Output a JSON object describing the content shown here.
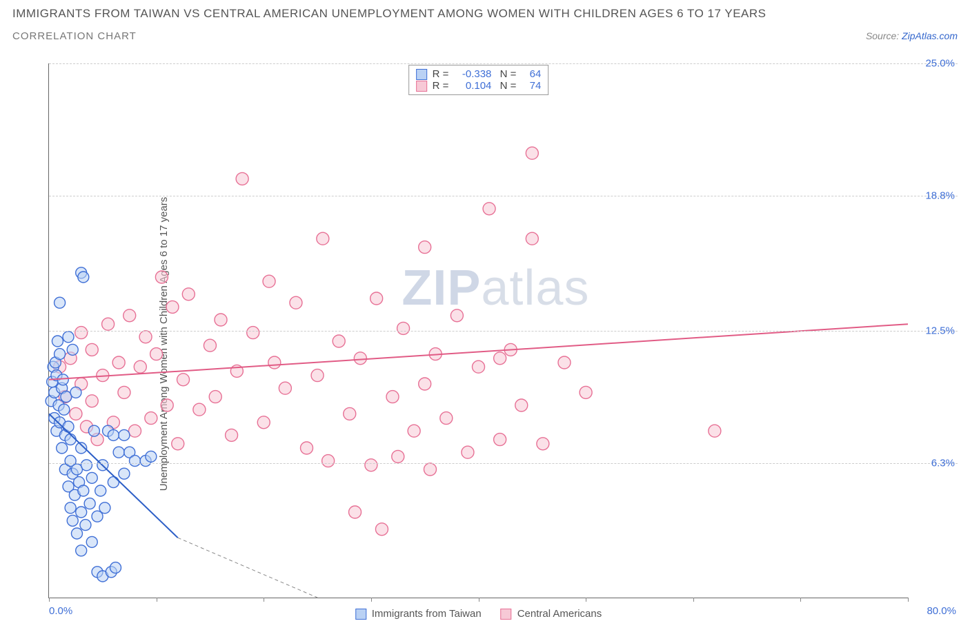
{
  "header": {
    "title": "IMMIGRANTS FROM TAIWAN VS CENTRAL AMERICAN UNEMPLOYMENT AMONG WOMEN WITH CHILDREN AGES 6 TO 17 YEARS",
    "subtitle": "CORRELATION CHART",
    "source_label": "Source: ",
    "source_name": "ZipAtlas.com"
  },
  "watermark": {
    "left": "ZIP",
    "right": "atlas"
  },
  "chart": {
    "type": "scatter",
    "y_axis_title": "Unemployment Among Women with Children Ages 6 to 17 years",
    "background_color": "#ffffff",
    "grid_color": "#cccccc",
    "axis_color": "#666666",
    "tick_label_color": "#3f6fd6",
    "xlim": [
      0,
      80
    ],
    "ylim": [
      0,
      25
    ],
    "x_ticks": [
      0,
      10,
      20,
      30,
      40,
      50,
      60,
      70,
      80
    ],
    "x_tick_labels": {
      "0": "0.0%",
      "80": "80.0%"
    },
    "y_ticks": [
      6.3,
      12.5,
      18.8,
      25.0
    ],
    "y_tick_labels": [
      "6.3%",
      "12.5%",
      "18.8%",
      "25.0%"
    ],
    "legend_top": [
      {
        "swatch_fill": "#b9d1f4",
        "swatch_stroke": "#3f6fd6",
        "r": "-0.338",
        "n": "64"
      },
      {
        "swatch_fill": "#f7c9d6",
        "swatch_stroke": "#e77095",
        "r": "0.104",
        "n": "74"
      }
    ],
    "legend_bottom": [
      {
        "swatch_fill": "#b9d1f4",
        "swatch_stroke": "#3f6fd6",
        "label": "Immigrants from Taiwan"
      },
      {
        "swatch_fill": "#f7c9d6",
        "swatch_stroke": "#e77095",
        "label": "Central Americans"
      }
    ],
    "series": [
      {
        "name": "Immigrants from Taiwan",
        "marker_fill": "#b9d1f4",
        "marker_stroke": "#3f6fd6",
        "marker_fill_opacity": 0.55,
        "marker_r": 8,
        "trend": {
          "x1": 0,
          "y1": 8.6,
          "x2": 12,
          "y2": 2.8,
          "stroke": "#2d5fc7",
          "width": 2,
          "dash_after_x": 12,
          "dash_to_x": 25,
          "dash_to_y": 0
        },
        "points": [
          [
            0.2,
            9.2
          ],
          [
            0.3,
            10.1
          ],
          [
            0.4,
            10.8
          ],
          [
            0.5,
            8.4
          ],
          [
            0.5,
            9.6
          ],
          [
            0.6,
            11.0
          ],
          [
            0.7,
            7.8
          ],
          [
            0.7,
            10.4
          ],
          [
            0.8,
            12.0
          ],
          [
            0.9,
            9.0
          ],
          [
            1.0,
            8.2
          ],
          [
            1.0,
            11.4
          ],
          [
            1.2,
            7.0
          ],
          [
            1.2,
            9.8
          ],
          [
            1.3,
            10.2
          ],
          [
            1.4,
            8.8
          ],
          [
            1.5,
            6.0
          ],
          [
            1.5,
            7.6
          ],
          [
            1.6,
            9.4
          ],
          [
            1.8,
            5.2
          ],
          [
            1.8,
            8.0
          ],
          [
            2.0,
            4.2
          ],
          [
            2.0,
            6.4
          ],
          [
            2.0,
            7.4
          ],
          [
            2.2,
            3.6
          ],
          [
            2.2,
            5.8
          ],
          [
            2.4,
            4.8
          ],
          [
            2.5,
            9.6
          ],
          [
            2.6,
            3.0
          ],
          [
            2.6,
            6.0
          ],
          [
            2.8,
            5.4
          ],
          [
            3.0,
            2.2
          ],
          [
            3.0,
            4.0
          ],
          [
            3.0,
            7.0
          ],
          [
            3.2,
            5.0
          ],
          [
            3.4,
            3.4
          ],
          [
            3.5,
            6.2
          ],
          [
            3.8,
            4.4
          ],
          [
            4.0,
            2.6
          ],
          [
            4.0,
            5.6
          ],
          [
            4.2,
            7.8
          ],
          [
            4.5,
            3.8
          ],
          [
            4.5,
            1.2
          ],
          [
            4.8,
            5.0
          ],
          [
            5.0,
            1.0
          ],
          [
            5.0,
            6.2
          ],
          [
            5.2,
            4.2
          ],
          [
            5.5,
            7.8
          ],
          [
            5.8,
            1.2
          ],
          [
            6.0,
            5.4
          ],
          [
            6.0,
            7.6
          ],
          [
            6.2,
            1.4
          ],
          [
            6.5,
            6.8
          ],
          [
            7.0,
            5.8
          ],
          [
            7.0,
            7.6
          ],
          [
            7.5,
            6.8
          ],
          [
            8.0,
            6.4
          ],
          [
            9.0,
            6.4
          ],
          [
            9.5,
            6.6
          ],
          [
            3.0,
            15.2
          ],
          [
            3.2,
            15.0
          ],
          [
            1.0,
            13.8
          ],
          [
            1.8,
            12.2
          ],
          [
            2.2,
            11.6
          ]
        ]
      },
      {
        "name": "Central Americans",
        "marker_fill": "#f7c9d6",
        "marker_stroke": "#e77095",
        "marker_fill_opacity": 0.55,
        "marker_r": 9,
        "trend": {
          "x1": 0,
          "y1": 10.2,
          "x2": 80,
          "y2": 12.8,
          "stroke": "#e15b85",
          "width": 2
        },
        "points": [
          [
            1.0,
            10.8
          ],
          [
            1.5,
            9.4
          ],
          [
            2.0,
            11.2
          ],
          [
            2.5,
            8.6
          ],
          [
            3.0,
            10.0
          ],
          [
            3.0,
            12.4
          ],
          [
            3.5,
            8.0
          ],
          [
            4.0,
            9.2
          ],
          [
            4.0,
            11.6
          ],
          [
            4.5,
            7.4
          ],
          [
            5.0,
            10.4
          ],
          [
            5.5,
            12.8
          ],
          [
            6.0,
            8.2
          ],
          [
            6.5,
            11.0
          ],
          [
            7.0,
            9.6
          ],
          [
            7.5,
            13.2
          ],
          [
            8.0,
            7.8
          ],
          [
            8.5,
            10.8
          ],
          [
            9.0,
            12.2
          ],
          [
            9.5,
            8.4
          ],
          [
            10.0,
            11.4
          ],
          [
            10.5,
            15.0
          ],
          [
            11.0,
            9.0
          ],
          [
            11.5,
            13.6
          ],
          [
            12.0,
            7.2
          ],
          [
            12.5,
            10.2
          ],
          [
            13.0,
            14.2
          ],
          [
            14.0,
            8.8
          ],
          [
            15.0,
            11.8
          ],
          [
            15.5,
            9.4
          ],
          [
            16.0,
            13.0
          ],
          [
            17.0,
            7.6
          ],
          [
            17.5,
            10.6
          ],
          [
            18.0,
            19.6
          ],
          [
            19.0,
            12.4
          ],
          [
            20.0,
            8.2
          ],
          [
            20.5,
            14.8
          ],
          [
            21.0,
            11.0
          ],
          [
            22.0,
            9.8
          ],
          [
            23.0,
            13.8
          ],
          [
            24.0,
            7.0
          ],
          [
            25.0,
            10.4
          ],
          [
            25.5,
            16.8
          ],
          [
            26.0,
            6.4
          ],
          [
            27.0,
            12.0
          ],
          [
            28.0,
            8.6
          ],
          [
            28.5,
            4.0
          ],
          [
            29.0,
            11.2
          ],
          [
            30.0,
            6.2
          ],
          [
            30.5,
            14.0
          ],
          [
            31.0,
            3.2
          ],
          [
            32.0,
            9.4
          ],
          [
            32.5,
            6.6
          ],
          [
            33.0,
            12.6
          ],
          [
            34.0,
            7.8
          ],
          [
            35.0,
            10.0
          ],
          [
            35.0,
            16.4
          ],
          [
            35.5,
            6.0
          ],
          [
            36.0,
            11.4
          ],
          [
            37.0,
            8.4
          ],
          [
            38.0,
            13.2
          ],
          [
            39.0,
            6.8
          ],
          [
            40.0,
            10.8
          ],
          [
            41.0,
            18.2
          ],
          [
            42.0,
            7.4
          ],
          [
            43.0,
            11.6
          ],
          [
            44.0,
            9.0
          ],
          [
            45.0,
            16.8
          ],
          [
            45.0,
            20.8
          ],
          [
            46.0,
            7.2
          ],
          [
            48.0,
            11.0
          ],
          [
            50.0,
            9.6
          ],
          [
            62.0,
            7.8
          ],
          [
            42.0,
            11.2
          ]
        ]
      }
    ]
  }
}
